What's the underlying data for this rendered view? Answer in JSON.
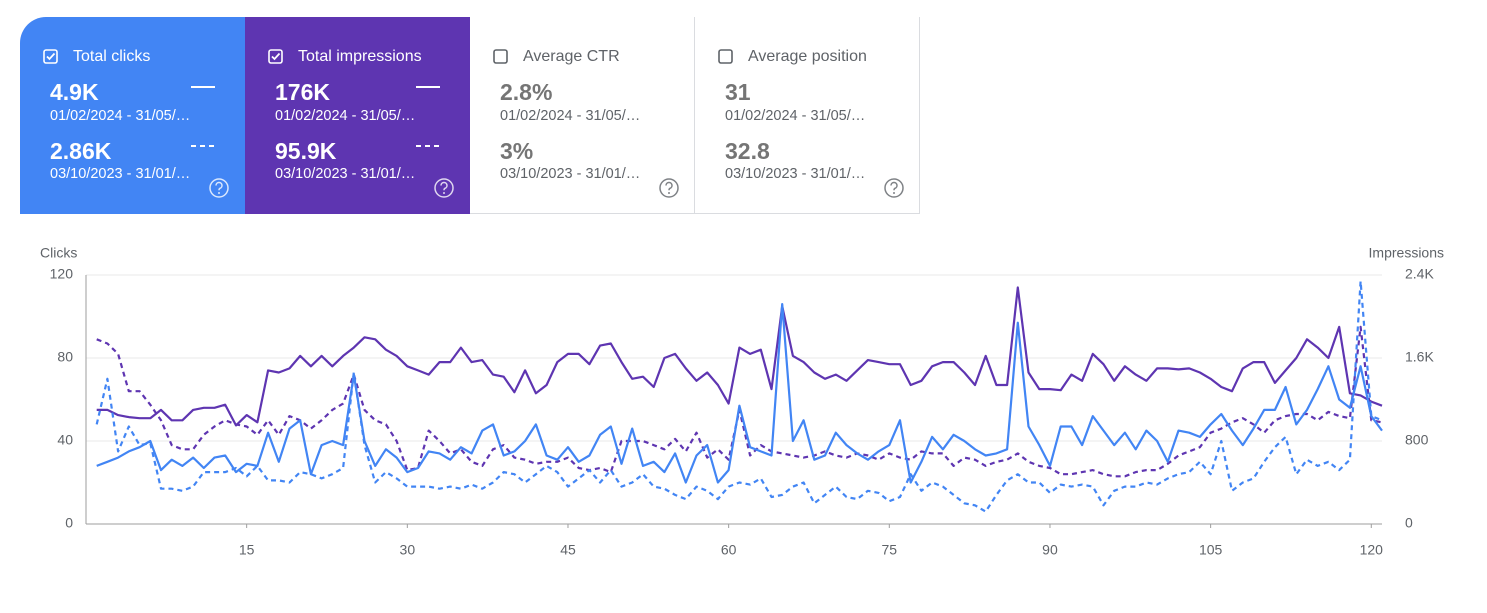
{
  "cards": [
    {
      "label": "Total clicks",
      "checked": true,
      "color": "#4285f4",
      "current": {
        "value": "4.9K",
        "date": "01/02/2024 - 31/05/…"
      },
      "previous": {
        "value": "2.86K",
        "date": "03/10/2023 - 31/01/…"
      }
    },
    {
      "label": "Total impressions",
      "checked": true,
      "color": "#5e35b1",
      "current": {
        "value": "176K",
        "date": "01/02/2024 - 31/05/…"
      },
      "previous": {
        "value": "95.9K",
        "date": "03/10/2023 - 31/01/…"
      }
    },
    {
      "label": "Average CTR",
      "checked": false,
      "color": "#ffffff",
      "current": {
        "value": "2.8%",
        "date": "01/02/2024 - 31/05/…"
      },
      "previous": {
        "value": "3%",
        "date": "03/10/2023 - 31/01/…"
      }
    },
    {
      "label": "Average position",
      "checked": false,
      "color": "#ffffff",
      "current": {
        "value": "31",
        "date": "01/02/2024 - 31/05/…"
      },
      "previous": {
        "value": "32.8",
        "date": "03/10/2023 - 31/01/…"
      }
    }
  ],
  "chart_data": {
    "type": "line",
    "y_label": "Clicks",
    "y2_label": "Impressions",
    "x": [
      1,
      2,
      3,
      4,
      5,
      6,
      7,
      8,
      9,
      10,
      11,
      12,
      13,
      14,
      15,
      16,
      17,
      18,
      19,
      20,
      21,
      22,
      23,
      24,
      25,
      26,
      27,
      28,
      29,
      30,
      31,
      32,
      33,
      34,
      35,
      36,
      37,
      38,
      39,
      40,
      41,
      42,
      43,
      44,
      45,
      46,
      47,
      48,
      49,
      50,
      51,
      52,
      53,
      54,
      55,
      56,
      57,
      58,
      59,
      60,
      61,
      62,
      63,
      64,
      65,
      66,
      67,
      68,
      69,
      70,
      71,
      72,
      73,
      74,
      75,
      76,
      77,
      78,
      79,
      80,
      81,
      82,
      83,
      84,
      85,
      86,
      87,
      88,
      89,
      90,
      91,
      92,
      93,
      94,
      95,
      96,
      97,
      98,
      99,
      100,
      101,
      102,
      103,
      104,
      105,
      106,
      107,
      108,
      109,
      110,
      111,
      112,
      113,
      114,
      115,
      116,
      117,
      118,
      119,
      120,
      121
    ],
    "xlim": [
      0,
      121
    ],
    "xticks": [
      15,
      30,
      45,
      60,
      75,
      90,
      105,
      120
    ],
    "ylim": [
      0,
      120
    ],
    "yticks": [
      0,
      40,
      80,
      120
    ],
    "y2lim": [
      0,
      2400
    ],
    "y2ticks": [
      0,
      800,
      {
        "value": 1600,
        "label": "1.6K"
      },
      {
        "value": 2400,
        "label": "2.4K"
      }
    ],
    "grid": true,
    "series": [
      {
        "color": "#5e35b1",
        "axis": "y2",
        "dashed": true,
        "values": [
          1780,
          1740,
          1640,
          1280,
          1280,
          1150,
          1000,
          760,
          720,
          720,
          860,
          940,
          1000,
          960,
          940,
          860,
          1000,
          860,
          1040,
          1000,
          920,
          1000,
          1100,
          1160,
          1440,
          1100,
          1000,
          960,
          800,
          520,
          540,
          900,
          800,
          680,
          720,
          600,
          560,
          720,
          760,
          640,
          620,
          580,
          600,
          600,
          640,
          540,
          520,
          540,
          500,
          800,
          800,
          800,
          760,
          720,
          820,
          700,
          880,
          640,
          720,
          620,
          1100,
          660,
          760,
          700,
          680,
          660,
          640,
          660,
          700,
          660,
          640,
          680,
          660,
          620,
          680,
          640,
          620,
          700,
          680,
          680,
          560,
          640,
          620,
          560,
          600,
          620,
          680,
          600,
          560,
          540,
          480,
          480,
          500,
          520,
          480,
          460,
          460,
          500,
          520,
          520,
          580,
          660,
          700,
          740,
          880,
          920,
          980,
          1020,
          960,
          880,
          1000,
          1040,
          1060,
          1060,
          1000,
          1080,
          1040,
          1020,
          1900,
          1000,
          980
        ]
      },
      {
        "color": "#5e35b1",
        "axis": "y2",
        "dashed": false,
        "values": [
          1100,
          1100,
          1050,
          1030,
          1020,
          1020,
          1100,
          1000,
          1000,
          1100,
          1120,
          1120,
          1150,
          950,
          1050,
          980,
          1480,
          1460,
          1500,
          1620,
          1520,
          1620,
          1520,
          1620,
          1700,
          1800,
          1780,
          1680,
          1620,
          1520,
          1480,
          1440,
          1560,
          1560,
          1700,
          1560,
          1580,
          1440,
          1420,
          1270,
          1480,
          1260,
          1340,
          1560,
          1640,
          1640,
          1540,
          1720,
          1740,
          1560,
          1400,
          1420,
          1320,
          1600,
          1640,
          1500,
          1380,
          1460,
          1340,
          1160,
          1700,
          1640,
          1680,
          1300,
          2100,
          1620,
          1560,
          1460,
          1400,
          1440,
          1380,
          1480,
          1580,
          1560,
          1540,
          1540,
          1340,
          1380,
          1520,
          1560,
          1560,
          1460,
          1340,
          1620,
          1340,
          1340,
          2280,
          1460,
          1300,
          1300,
          1290,
          1440,
          1380,
          1640,
          1540,
          1380,
          1520,
          1440,
          1380,
          1500,
          1500,
          1490,
          1500,
          1460,
          1400,
          1320,
          1280,
          1500,
          1560,
          1560,
          1360,
          1480,
          1600,
          1780,
          1700,
          1600,
          1900,
          1260,
          1240,
          1180,
          1140
        ]
      },
      {
        "color": "#4285f4",
        "axis": "y",
        "dashed": true,
        "values": [
          48,
          70,
          35,
          47,
          38,
          39,
          17,
          17,
          16,
          18,
          25,
          25,
          25,
          27,
          23,
          28,
          21,
          21,
          20,
          25,
          24,
          22,
          24,
          27,
          73,
          38,
          20,
          25,
          22,
          18,
          18,
          18,
          17,
          18,
          17,
          19,
          17,
          20,
          25,
          24,
          20,
          24,
          28,
          25,
          18,
          22,
          26,
          20,
          26,
          18,
          20,
          24,
          18,
          17,
          14,
          12,
          18,
          16,
          12,
          18,
          20,
          19,
          22,
          13,
          14,
          18,
          20,
          10,
          14,
          18,
          13,
          12,
          16,
          15,
          11,
          13,
          24,
          16,
          20,
          18,
          14,
          10,
          9,
          6,
          14,
          21,
          24,
          20,
          20,
          15,
          19,
          18,
          19,
          18,
          9,
          16,
          18,
          18,
          20,
          19,
          22,
          24,
          25,
          30,
          24,
          40,
          16,
          20,
          22,
          30,
          37,
          42,
          24,
          31,
          28,
          30,
          26,
          31,
          117,
          52,
          50
        ]
      },
      {
        "color": "#4285f4",
        "axis": "y",
        "dashed": false,
        "values": [
          28,
          30,
          32,
          35,
          37,
          40,
          26,
          31,
          28,
          32,
          27,
          32,
          33,
          25,
          29,
          28,
          44,
          30,
          46,
          50,
          24,
          38,
          40,
          38,
          72,
          40,
          28,
          36,
          32,
          25,
          27,
          35,
          34,
          31,
          37,
          34,
          45,
          48,
          33,
          35,
          40,
          48,
          33,
          31,
          37,
          30,
          33,
          43,
          47,
          29,
          46,
          28,
          30,
          25,
          34,
          20,
          33,
          38,
          20,
          26,
          57,
          37,
          35,
          33,
          106,
          40,
          50,
          31,
          33,
          44,
          38,
          34,
          31,
          35,
          38,
          50,
          20,
          30,
          42,
          36,
          43,
          40,
          36,
          33,
          34,
          36,
          97,
          47,
          38,
          28,
          47,
          47,
          38,
          52,
          45,
          38,
          44,
          36,
          45,
          40,
          30,
          45,
          44,
          42,
          48,
          53,
          45,
          38,
          46,
          55,
          55,
          66,
          48,
          55,
          65,
          76,
          60,
          56,
          76,
          52,
          45
        ]
      }
    ]
  }
}
